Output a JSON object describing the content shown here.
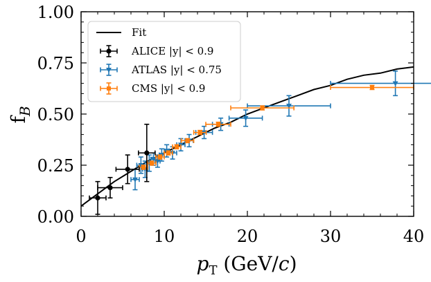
{
  "chart_data": {
    "type": "scatter",
    "xlabel": "p_T (GeV/c)",
    "ylabel": "f_B",
    "xlim": [
      0,
      40
    ],
    "ylim": [
      0,
      1
    ],
    "xticks": [
      0,
      10,
      20,
      30,
      40
    ],
    "yticks": [
      0.0,
      0.25,
      0.5,
      0.75,
      1.0
    ],
    "xtick_labels": [
      "0",
      "10",
      "20",
      "30",
      "40"
    ],
    "ytick_labels": [
      "0.00",
      "0.25",
      "0.50",
      "0.75",
      "1.00"
    ],
    "legend": {
      "placement": "top-left",
      "entries": [
        "Fit",
        "ALICE |y| < 0.9",
        "ATLAS |y| < 0.75",
        "CMS |y| < 0.9"
      ]
    },
    "fit": {
      "name": "Fit",
      "color": "#000000",
      "x": [
        0,
        2,
        4,
        6,
        8,
        10,
        12,
        14,
        16,
        18,
        20,
        22,
        24,
        26,
        28,
        30,
        32,
        34,
        36,
        38,
        40
      ],
      "y": [
        0.05,
        0.11,
        0.17,
        0.22,
        0.27,
        0.31,
        0.35,
        0.39,
        0.43,
        0.46,
        0.5,
        0.53,
        0.56,
        0.59,
        0.62,
        0.64,
        0.67,
        0.69,
        0.7,
        0.72,
        0.73
      ]
    },
    "series": [
      {
        "name": "ALICE |y| < 0.9",
        "color": "#000000",
        "marker": "circle",
        "points": [
          {
            "x": 2.0,
            "y": 0.09,
            "xerr": 1.0,
            "yerr": 0.08
          },
          {
            "x": 3.5,
            "y": 0.14,
            "xerr": 1.5,
            "yerr": 0.05
          },
          {
            "x": 5.6,
            "y": 0.23,
            "xerr": 1.4,
            "yerr": 0.07
          },
          {
            "x": 7.9,
            "y": 0.31,
            "xerr": 1.0,
            "yerr": 0.14
          }
        ]
      },
      {
        "name": "ATLAS |y| < 0.75",
        "color": "#1f77b4",
        "marker": "triangle-down",
        "points": [
          {
            "x": 6.5,
            "y": 0.18,
            "xerr": 0.5,
            "yerr": 0.05
          },
          {
            "x": 7.2,
            "y": 0.25,
            "xerr": 0.5,
            "yerr": 0.04
          },
          {
            "x": 7.7,
            "y": 0.23,
            "xerr": 0.3,
            "yerr": 0.04
          },
          {
            "x": 8.2,
            "y": 0.26,
            "xerr": 0.3,
            "yerr": 0.04
          },
          {
            "x": 8.7,
            "y": 0.28,
            "xerr": 0.3,
            "yerr": 0.03
          },
          {
            "x": 9.2,
            "y": 0.27,
            "xerr": 0.3,
            "yerr": 0.03
          },
          {
            "x": 9.7,
            "y": 0.3,
            "xerr": 0.3,
            "yerr": 0.03
          },
          {
            "x": 10.3,
            "y": 0.32,
            "xerr": 0.3,
            "yerr": 0.03
          },
          {
            "x": 11.0,
            "y": 0.31,
            "xerr": 0.5,
            "yerr": 0.03
          },
          {
            "x": 12.0,
            "y": 0.35,
            "xerr": 0.5,
            "yerr": 0.03
          },
          {
            "x": 13.0,
            "y": 0.37,
            "xerr": 0.5,
            "yerr": 0.03
          },
          {
            "x": 14.8,
            "y": 0.41,
            "xerr": 1.0,
            "yerr": 0.03
          },
          {
            "x": 16.8,
            "y": 0.45,
            "xerr": 1.0,
            "yerr": 0.03
          },
          {
            "x": 19.8,
            "y": 0.48,
            "xerr": 2.0,
            "yerr": 0.04
          },
          {
            "x": 25.0,
            "y": 0.54,
            "xerr": 5.0,
            "yerr": 0.05
          },
          {
            "x": 37.8,
            "y": 0.65,
            "xerr": 7.8,
            "yerr": 0.06
          }
        ]
      },
      {
        "name": "CMS |y| < 0.9",
        "color": "#ff7f0e",
        "marker": "square",
        "points": [
          {
            "x": 7.5,
            "y": 0.24,
            "xerr": 0.5,
            "yerr": 0.01
          },
          {
            "x": 8.5,
            "y": 0.26,
            "xerr": 0.5,
            "yerr": 0.01
          },
          {
            "x": 9.5,
            "y": 0.29,
            "xerr": 0.5,
            "yerr": 0.01
          },
          {
            "x": 10.5,
            "y": 0.31,
            "xerr": 0.5,
            "yerr": 0.01
          },
          {
            "x": 11.5,
            "y": 0.34,
            "xerr": 0.5,
            "yerr": 0.01
          },
          {
            "x": 12.8,
            "y": 0.37,
            "xerr": 0.75,
            "yerr": 0.01
          },
          {
            "x": 14.3,
            "y": 0.41,
            "xerr": 0.75,
            "yerr": 0.01
          },
          {
            "x": 16.5,
            "y": 0.45,
            "xerr": 1.5,
            "yerr": 0.01
          },
          {
            "x": 21.8,
            "y": 0.53,
            "xerr": 3.8,
            "yerr": 0.01
          },
          {
            "x": 35.0,
            "y": 0.63,
            "xerr": 5.0,
            "yerr": 0.01
          }
        ]
      }
    ]
  }
}
